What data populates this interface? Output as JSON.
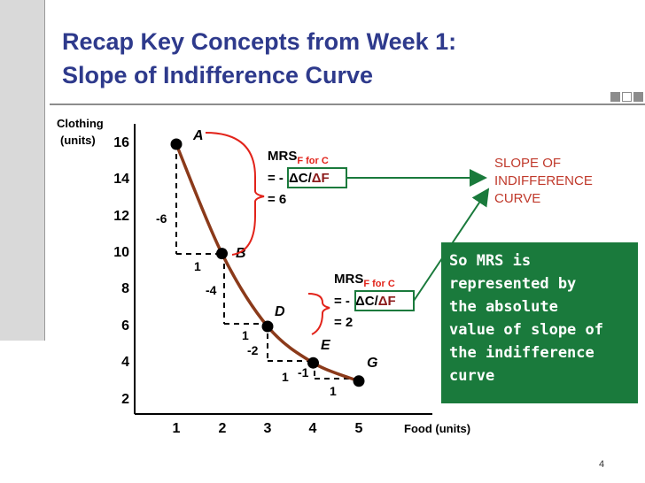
{
  "title": {
    "line1": "Recap Key Concepts from Week 1:",
    "line2": "Slope of Indifference Curve"
  },
  "colors": {
    "title": "#2e3a8c",
    "curve": "#8b3a1a",
    "brace_and_arrow": "#e2231a",
    "green": "#1a7a3c",
    "slope_label": "#c0392b"
  },
  "axes": {
    "y_label_line1": "Clothing",
    "y_label_line2": "(units)",
    "x_label": "Food (units)",
    "y_ticks": [
      "16",
      "14",
      "12",
      "10",
      "8",
      "6",
      "4",
      "2"
    ],
    "x_ticks": [
      "1",
      "2",
      "3",
      "4",
      "5"
    ]
  },
  "chart_data": {
    "type": "line",
    "x": [
      1,
      2,
      3,
      4,
      5
    ],
    "y": [
      16,
      10,
      6,
      4,
      3
    ],
    "point_labels": [
      "A",
      "B",
      "D",
      "E",
      "G"
    ],
    "xlabel": "Food (units)",
    "ylabel": "Clothing (units)",
    "xlim": [
      0,
      5.5
    ],
    "ylim": [
      1,
      16.5
    ],
    "steps": [
      {
        "from": "A",
        "to": "B",
        "dy_label": "-6",
        "dx_label": "1"
      },
      {
        "from": "B",
        "to": "D",
        "dy_label": "-4",
        "dx_label": "1"
      },
      {
        "from": "D",
        "to": "E",
        "dy_label": "-2",
        "dx_label": "1"
      },
      {
        "from": "E",
        "to": "G",
        "dy_label": "-1",
        "dx_label": "1"
      }
    ]
  },
  "mrs1": {
    "line1_main": "MRS",
    "line1_sub": "F for C",
    "line2_prefix": "= -",
    "line2_dc": "ΔC",
    "line2_slash": "/",
    "line2_df": "ΔF",
    "line3": "= 6"
  },
  "mrs2": {
    "line1_main": "MRS",
    "line1_sub": "F for C",
    "line2_prefix": "= -",
    "line2_dc": "ΔC",
    "line2_slash": "/",
    "line2_df": "ΔF",
    "line3": "= 2"
  },
  "slope_label": {
    "line1": "SLOPE OF",
    "line2": "INDIFFERENCE",
    "line3": "CURVE"
  },
  "callout": {
    "lines": [
      "So MRS is",
      "represented by",
      "the absolute",
      "value of slope of",
      "the indifference",
      "curve"
    ]
  },
  "page_number": "4"
}
